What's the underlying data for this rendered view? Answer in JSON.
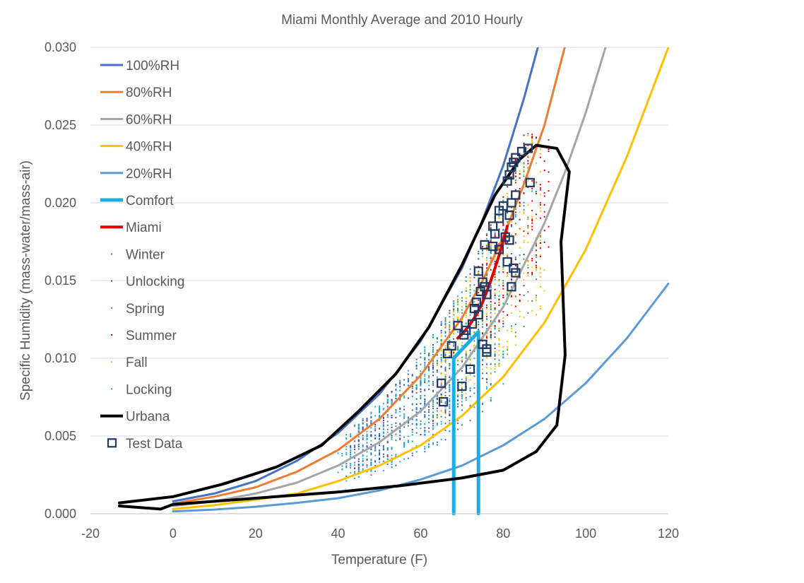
{
  "chart_data": {
    "type": "scatter",
    "title": "Miami Monthly Average and 2010 Hourly",
    "xlabel": "Temperature (F)",
    "ylabel": "Specific Humidity (mass-water/mass-air)",
    "xlim": [
      -20,
      120
    ],
    "ylim": [
      0,
      0.03
    ],
    "x_ticks": [
      "-20",
      "0",
      "20",
      "40",
      "60",
      "80",
      "100",
      "120"
    ],
    "y_ticks": [
      "0.000",
      "0.005",
      "0.010",
      "0.015",
      "0.020",
      "0.025",
      "0.030"
    ],
    "grid": "horizontal",
    "legend_position": "upper-left",
    "series": [
      {
        "name": "100%RH",
        "kind": "line",
        "color": "#4472c4",
        "width": 3,
        "x": [
          0,
          10,
          20,
          30,
          40,
          50,
          60,
          70,
          75,
          80,
          85,
          89
        ],
        "y": [
          0.0008,
          0.0013,
          0.0021,
          0.0034,
          0.0052,
          0.0077,
          0.0111,
          0.0158,
          0.0189,
          0.0224,
          0.0267,
          0.0306
        ]
      },
      {
        "name": "80%RH",
        "kind": "line",
        "color": "#ed7d31",
        "width": 3,
        "x": [
          0,
          10,
          20,
          30,
          40,
          50,
          60,
          70,
          75,
          80,
          85,
          90,
          95
        ],
        "y": [
          0.00065,
          0.0011,
          0.0017,
          0.0027,
          0.0041,
          0.0061,
          0.0089,
          0.0126,
          0.015,
          0.0178,
          0.0212,
          0.025,
          0.0301
        ]
      },
      {
        "name": "60%RH",
        "kind": "line",
        "color": "#a5a5a5",
        "width": 3,
        "x": [
          0,
          10,
          20,
          30,
          40,
          50,
          60,
          70,
          80,
          90,
          95,
          100,
          105
        ],
        "y": [
          0.0005,
          0.0008,
          0.0013,
          0.002,
          0.0031,
          0.0046,
          0.0066,
          0.0094,
          0.0133,
          0.0187,
          0.022,
          0.0258,
          0.0302
        ]
      },
      {
        "name": "40%RH",
        "kind": "line",
        "color": "#ffc000",
        "width": 3,
        "x": [
          0,
          10,
          20,
          30,
          40,
          50,
          60,
          70,
          80,
          90,
          100,
          110,
          120
        ],
        "y": [
          0.0003,
          0.00055,
          0.0009,
          0.0013,
          0.0021,
          0.0031,
          0.0044,
          0.0063,
          0.0088,
          0.0123,
          0.017,
          0.023,
          0.03
        ]
      },
      {
        "name": "20%RH",
        "kind": "line",
        "color": "#5b9bd5",
        "width": 3,
        "x": [
          0,
          10,
          20,
          30,
          40,
          50,
          60,
          70,
          80,
          90,
          100,
          110,
          120
        ],
        "y": [
          0.00015,
          0.00027,
          0.00045,
          0.0007,
          0.001,
          0.0015,
          0.0022,
          0.0031,
          0.0044,
          0.0061,
          0.0084,
          0.0113,
          0.0148
        ]
      },
      {
        "name": "Comfort",
        "kind": "line",
        "color": "#1cade4",
        "width": 5,
        "x": [
          68,
          68,
          74,
          74
        ],
        "y": [
          0,
          0.01,
          0.0117,
          0
        ]
      },
      {
        "name": "Miami",
        "kind": "line",
        "color": "#e00000",
        "width": 4,
        "x": [
          69,
          70.5,
          72,
          73.5,
          75,
          77,
          79,
          81
        ],
        "y": [
          0.0113,
          0.0117,
          0.0122,
          0.0128,
          0.0136,
          0.015,
          0.0166,
          0.0185
        ]
      },
      {
        "name": "Winter",
        "kind": "scatter",
        "color": "#4472c4"
      },
      {
        "name": "Unlocking",
        "kind": "scatter",
        "color": "#3b4aa3"
      },
      {
        "name": "Spring",
        "kind": "scatter",
        "color": "#1f9c7a"
      },
      {
        "name": "Summer",
        "kind": "scatter",
        "color": "#e00000"
      },
      {
        "name": "Fall",
        "kind": "scatter",
        "color": "#ffc000"
      },
      {
        "name": "Locking",
        "kind": "scatter",
        "color": "#1cade4"
      },
      {
        "name": "Urbana",
        "kind": "line",
        "color": "#000000",
        "width": 4,
        "x": [
          -13,
          0,
          12,
          25,
          36,
          45,
          54,
          62,
          70,
          78,
          84,
          88,
          93,
          96,
          94,
          95,
          93,
          88,
          80,
          70,
          55,
          40,
          20,
          0,
          -3,
          -13
        ],
        "y": [
          0.0007,
          0.0011,
          0.0019,
          0.003,
          0.0044,
          0.0066,
          0.009,
          0.012,
          0.016,
          0.0205,
          0.0228,
          0.0237,
          0.0235,
          0.022,
          0.0175,
          0.0102,
          0.0057,
          0.004,
          0.0028,
          0.0023,
          0.0018,
          0.0014,
          0.001,
          0.0006,
          0.0003,
          0.0005
        ]
      },
      {
        "name": "Test Data",
        "kind": "marker",
        "color": "#1f3864",
        "x": [
          86,
          84.5,
          83,
          82,
          81.5,
          82.5,
          81,
          86.5,
          83,
          82,
          80,
          79,
          81.5,
          79,
          77.5,
          78,
          75.5,
          80.5,
          81.5,
          77.5,
          79,
          81,
          82.5,
          83,
          82,
          74,
          75,
          75.5,
          74.5,
          76,
          73.5,
          73,
          74,
          72.5,
          71,
          70.5,
          69,
          67.5,
          66.5,
          75,
          76,
          76,
          72,
          70,
          65,
          65.5
        ],
        "y": [
          0.0235,
          0.0233,
          0.0229,
          0.0223,
          0.0218,
          0.0226,
          0.0214,
          0.0213,
          0.0205,
          0.02,
          0.0198,
          0.0195,
          0.0192,
          0.019,
          0.0185,
          0.018,
          0.0173,
          0.0178,
          0.0176,
          0.0172,
          0.017,
          0.0162,
          0.0158,
          0.0155,
          0.0146,
          0.0156,
          0.0149,
          0.0146,
          0.0143,
          0.0141,
          0.0136,
          0.0132,
          0.0128,
          0.0122,
          0.0118,
          0.0115,
          0.0121,
          0.0108,
          0.0103,
          0.0109,
          0.0106,
          0.0104,
          0.0093,
          0.0082,
          0.0084,
          0.0072
        ]
      }
    ]
  }
}
